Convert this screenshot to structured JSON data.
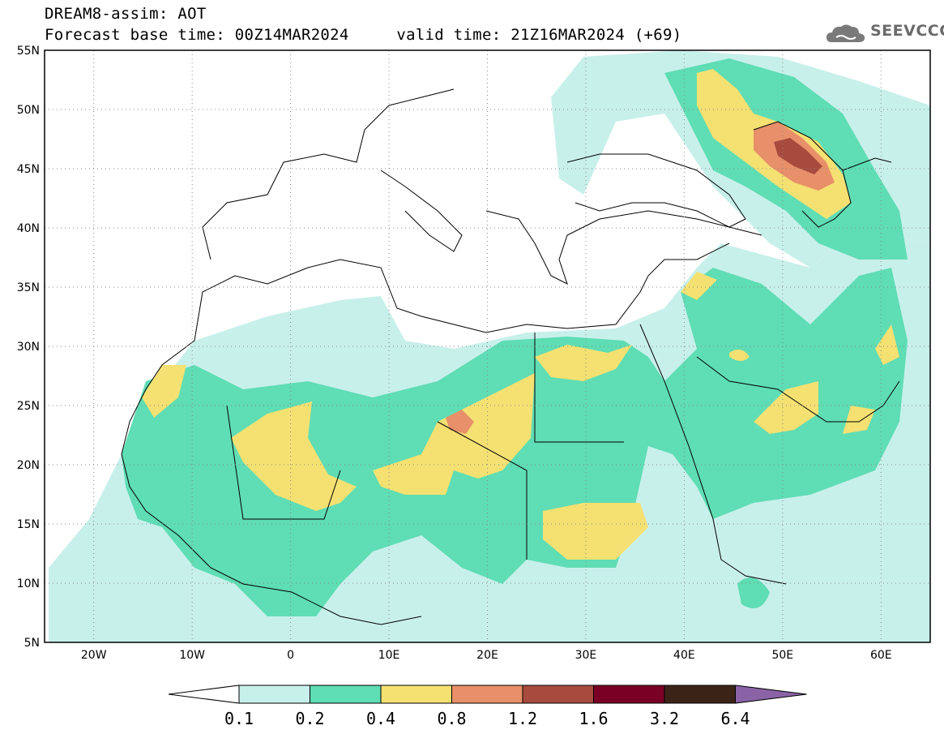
{
  "header": {
    "line1": "DREAM8-assim: AOT",
    "line2": "Forecast base time: 00Z14MAR2024     valid time: 21Z16MAR2024 (+69)",
    "logo_text": "SEEVCCC"
  },
  "map": {
    "lat_range": [
      5,
      55
    ],
    "lon_range": [
      -25,
      65
    ],
    "lat_labels": [
      "55N",
      "50N",
      "45N",
      "40N",
      "35N",
      "30N",
      "25N",
      "20N",
      "15N",
      "10N",
      "5N"
    ],
    "lat_values": [
      55,
      50,
      45,
      40,
      35,
      30,
      25,
      20,
      15,
      10,
      5
    ],
    "lon_labels": [
      "20W",
      "10W",
      "0",
      "10E",
      "20E",
      "30E",
      "40E",
      "50E",
      "60E"
    ],
    "lon_values": [
      -20,
      -10,
      0,
      10,
      20,
      30,
      40,
      50,
      60
    ],
    "grid": "dotted"
  },
  "colorbar": {
    "labels": [
      "0.1",
      "0.2",
      "0.4",
      "0.8",
      "1.2",
      "1.6",
      "3.2",
      "6.4"
    ],
    "colors": [
      "#ffffff",
      "#c8f0eb",
      "#5fddb4",
      "#f5e172",
      "#e8906a",
      "#a84a3e",
      "#7a0025",
      "#3b2417",
      "#8a63a6"
    ]
  }
}
